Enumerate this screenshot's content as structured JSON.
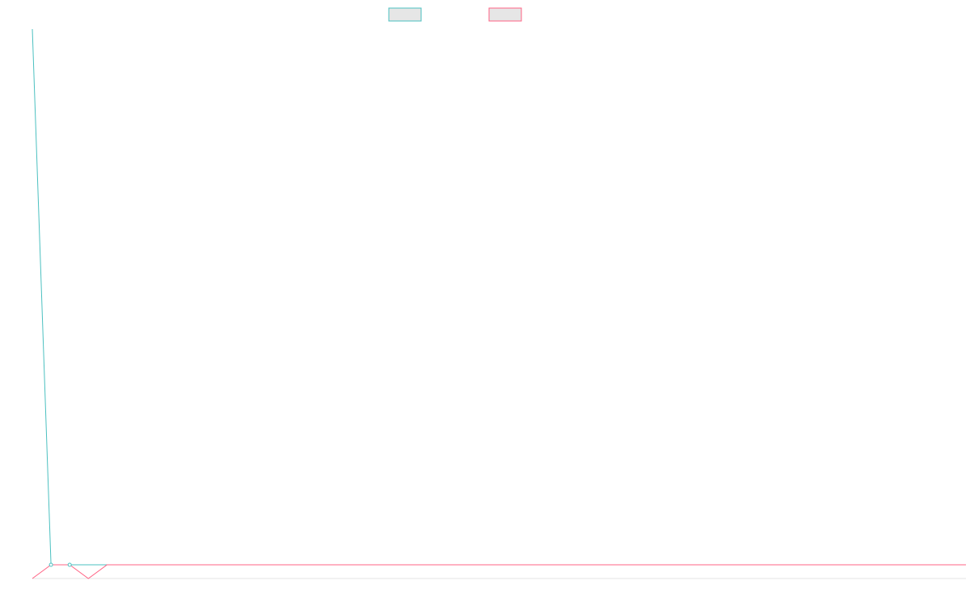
{
  "chart_data": {
    "type": "line",
    "title": "",
    "xlabel": "",
    "ylabel": "",
    "grid": false,
    "legend_position": "top-center",
    "x": [
      0,
      1,
      2,
      3,
      4,
      5,
      6,
      7,
      8,
      9,
      10,
      11,
      12,
      13,
      14,
      15,
      16,
      17,
      18,
      19,
      20,
      21,
      22,
      23,
      24,
      25,
      26,
      27,
      28,
      29,
      30,
      31,
      32,
      33,
      34,
      35,
      36,
      37,
      38,
      39,
      40,
      41,
      42,
      43,
      44,
      45,
      46,
      47,
      48,
      49,
      50
    ],
    "xlim": [
      0,
      50
    ],
    "ylim": [
      -1,
      39
    ],
    "series": [
      {
        "color": "#4bc0c0",
        "values": [
          39,
          0,
          0,
          0,
          0,
          0,
          0,
          0,
          0,
          0,
          0,
          0,
          0,
          0,
          0,
          0,
          0,
          0,
          0,
          0,
          0,
          0,
          0,
          0,
          0,
          0,
          0,
          0,
          0,
          0,
          0,
          0,
          0,
          0,
          0,
          0,
          0,
          0,
          0,
          0,
          0,
          0,
          0,
          0,
          0,
          0,
          0,
          0,
          0,
          0,
          0
        ]
      },
      {
        "color": "#ff6384",
        "values": [
          -1,
          0,
          0,
          -1,
          0,
          0,
          0,
          0,
          0,
          0,
          0,
          0,
          0,
          0,
          0,
          0,
          0,
          0,
          0,
          0,
          0,
          0,
          0,
          0,
          0,
          0,
          0,
          0,
          0,
          0,
          0,
          0,
          0,
          0,
          0,
          0,
          0,
          0,
          0,
          0,
          0,
          0,
          0,
          0,
          0,
          0,
          0,
          0,
          0,
          0,
          0
        ]
      }
    ],
    "markers": [
      {
        "series": 0,
        "x": 1,
        "y": 0
      },
      {
        "series": 0,
        "x": 2,
        "y": 0
      }
    ]
  }
}
